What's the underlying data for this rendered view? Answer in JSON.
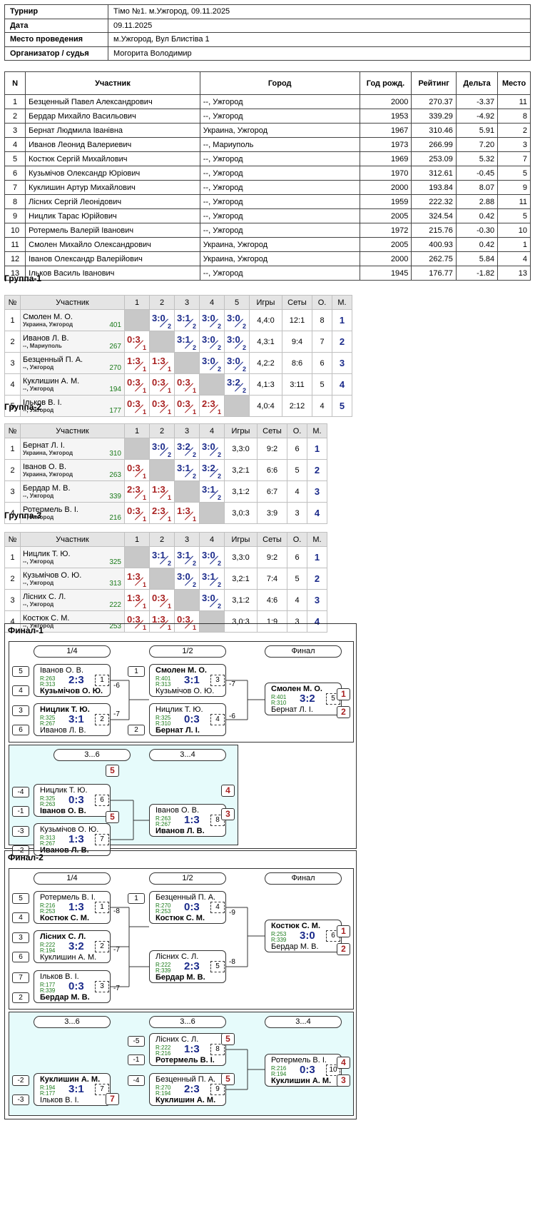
{
  "info": [
    {
      "k": "Турнир",
      "v": "Тімо №1. м.Ужгород, 09.11.2025"
    },
    {
      "k": "Дата",
      "v": "09.11.2025"
    },
    {
      "k": "Место проведения",
      "v": "м.Ужгород, Вул Блистіва 1"
    },
    {
      "k": "Организатор / судья",
      "v": "Могорита Володимир"
    }
  ],
  "main": {
    "headers": [
      "N",
      "Участник",
      "Город",
      "Год рожд.",
      "Рейтинг",
      "Дельта",
      "Место"
    ],
    "rows": [
      [
        "1",
        "Безценный Павел Александрович",
        "--, Ужгород",
        "2000",
        "270.37",
        "-3.37",
        "11"
      ],
      [
        "2",
        "Бердар Михайло Васильович",
        "--, Ужгород",
        "1953",
        "339.29",
        "-4.92",
        "8"
      ],
      [
        "3",
        "Бернат Людмила Іванівна",
        "Украина, Ужгород",
        "1967",
        "310.46",
        "5.91",
        "2"
      ],
      [
        "4",
        "Иванов Леонид Валериевич",
        "--, Мариуполь",
        "1973",
        "266.99",
        "7.20",
        "3"
      ],
      [
        "5",
        "Костюк Сергій Михайлович",
        "--, Ужгород",
        "1969",
        "253.09",
        "5.32",
        "7"
      ],
      [
        "6",
        "Кузьмічов Олександр Юрiович",
        "--, Ужгород",
        "1970",
        "312.61",
        "-0.45",
        "5"
      ],
      [
        "7",
        "Куклишин Артур Михайлович",
        "--, Ужгород",
        "2000",
        "193.84",
        "8.07",
        "9"
      ],
      [
        "8",
        "Лісних Сергій Леонідович",
        "--, Ужгород",
        "1959",
        "222.32",
        "2.88",
        "11"
      ],
      [
        "9",
        "Ницлик Тарас Юрійович",
        "--, Ужгород",
        "2005",
        "324.54",
        "0.42",
        "5"
      ],
      [
        "10",
        "Ротермель Валерій Іванович",
        "--, Ужгород",
        "1972",
        "215.76",
        "-0.30",
        "10"
      ],
      [
        "11",
        "Смолен Михайло Олександрович",
        "Украина, Ужгород",
        "2005",
        "400.93",
        "0.42",
        "1"
      ],
      [
        "12",
        "Іванов Олександр Валерійович",
        "Украина, Ужгород",
        "2000",
        "262.75",
        "5.84",
        "4"
      ],
      [
        "13",
        "Ільков Василь Іванович",
        "--, Ужгород",
        "1945",
        "176.77",
        "-1.82",
        "13"
      ]
    ]
  },
  "groups": [
    {
      "title": "Группа-1",
      "cols": [
        "№",
        "Участник",
        "1",
        "2",
        "3",
        "4",
        "5",
        "Игры",
        "Сеты",
        "О.",
        "М."
      ],
      "players": [
        {
          "n": "1",
          "name": "Смолен М. О.",
          "city": "Украина, Ужгород",
          "rating": "401",
          "scores": [
            "",
            "3:0/2",
            "3:1/2",
            "3:0/2",
            "3:0/2"
          ],
          "games": "4,4:0",
          "sets": "12:1",
          "pts": "8",
          "place": "1"
        },
        {
          "n": "2",
          "name": "Иванов Л. В.",
          "city": "--, Мариуполь",
          "rating": "267",
          "scores": [
            "0:3/1",
            "",
            "3:1/2",
            "3:0/2",
            "3:0/2"
          ],
          "games": "4,3:1",
          "sets": "9:4",
          "pts": "7",
          "place": "2"
        },
        {
          "n": "3",
          "name": "Безценный П. А.",
          "city": "--, Ужгород",
          "rating": "270",
          "scores": [
            "1:3/1",
            "1:3/1",
            "",
            "3:0/2",
            "3:0/2"
          ],
          "games": "4,2:2",
          "sets": "8:6",
          "pts": "6",
          "place": "3"
        },
        {
          "n": "4",
          "name": "Куклишин А. М.",
          "city": "--, Ужгород",
          "rating": "194",
          "scores": [
            "0:3/1",
            "0:3/1",
            "0:3/1",
            "",
            "3:2/2"
          ],
          "games": "4,1:3",
          "sets": "3:11",
          "pts": "5",
          "place": "4"
        },
        {
          "n": "5",
          "name": "Ільков В. І.",
          "city": "--, Ужгород",
          "rating": "177",
          "scores": [
            "0:3/1",
            "0:3/1",
            "0:3/1",
            "2:3/1",
            ""
          ],
          "games": "4,0:4",
          "sets": "2:12",
          "pts": "4",
          "place": "5"
        }
      ]
    },
    {
      "title": "Группа-2",
      "cols": [
        "№",
        "Участник",
        "1",
        "2",
        "3",
        "4",
        "Игры",
        "Сеты",
        "О.",
        "М."
      ],
      "players": [
        {
          "n": "1",
          "name": "Бернат Л. І.",
          "city": "Украина, Ужгород",
          "rating": "310",
          "scores": [
            "",
            "3:0/2",
            "3:2/2",
            "3:0/2"
          ],
          "games": "3,3:0",
          "sets": "9:2",
          "pts": "6",
          "place": "1"
        },
        {
          "n": "2",
          "name": "Іванов О. В.",
          "city": "Украина, Ужгород",
          "rating": "263",
          "scores": [
            "0:3/1",
            "",
            "3:1/2",
            "3:2/2"
          ],
          "games": "3,2:1",
          "sets": "6:6",
          "pts": "5",
          "place": "2"
        },
        {
          "n": "3",
          "name": "Бердар М. В.",
          "city": "--, Ужгород",
          "rating": "339",
          "scores": [
            "2:3/1",
            "1:3/1",
            "",
            "3:1/2"
          ],
          "games": "3,1:2",
          "sets": "6:7",
          "pts": "4",
          "place": "3"
        },
        {
          "n": "4",
          "name": "Ротермель В. І.",
          "city": "--, Ужгород",
          "rating": "216",
          "scores": [
            "0:3/1",
            "2:3/1",
            "1:3/1",
            ""
          ],
          "games": "3,0:3",
          "sets": "3:9",
          "pts": "3",
          "place": "4"
        }
      ]
    },
    {
      "title": "Группа-3",
      "cols": [
        "№",
        "Участник",
        "1",
        "2",
        "3",
        "4",
        "Игры",
        "Сеты",
        "О.",
        "М."
      ],
      "players": [
        {
          "n": "1",
          "name": "Ницлик Т. Ю.",
          "city": "--, Ужгород",
          "rating": "325",
          "scores": [
            "",
            "3:1/2",
            "3:1/2",
            "3:0/2"
          ],
          "games": "3,3:0",
          "sets": "9:2",
          "pts": "6",
          "place": "1"
        },
        {
          "n": "2",
          "name": "Кузьмічов О. Ю.",
          "city": "--, Ужгород",
          "rating": "313",
          "scores": [
            "1:3/1",
            "",
            "3:0/2",
            "3:1/2"
          ],
          "games": "3,2:1",
          "sets": "7:4",
          "pts": "5",
          "place": "2"
        },
        {
          "n": "3",
          "name": "Лісних С. Л.",
          "city": "--, Ужгород",
          "rating": "222",
          "scores": [
            "1:3/1",
            "0:3/1",
            "",
            "3:0/2"
          ],
          "games": "3,1:2",
          "sets": "4:6",
          "pts": "4",
          "place": "3"
        },
        {
          "n": "4",
          "name": "Костюк С. М.",
          "city": "--, Ужгород",
          "rating": "253",
          "scores": [
            "0:3/1",
            "1:3/1",
            "0:3/1",
            ""
          ],
          "games": "3,0:3",
          "sets": "1:9",
          "pts": "3",
          "place": "4"
        }
      ]
    }
  ],
  "finals": [
    {
      "title": "Финал-1",
      "headers": [
        "1/4",
        "1/2",
        "Финал",
        "3...6",
        "3...4"
      ],
      "matches": [
        {
          "p1": "Іванов О. В.",
          "p2": "Кузьмічов О. Ю.",
          "r1": "R:263",
          "r2": "R:313",
          "score": "2:3",
          "num": "1",
          "w": 2
        },
        {
          "p1": "Ницлик Т. Ю.",
          "p2": "Иванов Л. В.",
          "r1": "R:325",
          "r2": "R:267",
          "score": "3:1",
          "num": "2",
          "w": 1
        },
        {
          "p1": "Смолен М. О.",
          "p2": "Кузьмічов О. Ю.",
          "r1": "R:401",
          "r2": "R:313",
          "score": "3:1",
          "num": "3",
          "w": 1
        },
        {
          "p1": "Ницлик Т. Ю.",
          "p2": "Бернат Л. І.",
          "r1": "R:325",
          "r2": "R:310",
          "score": "0:3",
          "num": "4",
          "w": 2
        },
        {
          "p1": "Смолен М. О.",
          "p2": "Бернат Л. І.",
          "r1": "R:401",
          "r2": "R:310",
          "score": "3:2",
          "num": "5",
          "w": 1
        },
        {
          "p1": "Ницлик Т. Ю.",
          "p2": "Іванов О. В.",
          "r1": "R:325",
          "r2": "R:263",
          "score": "0:3",
          "num": "6",
          "w": 2
        },
        {
          "p1": "Кузьмічов О. Ю.",
          "p2": "Иванов Л. В.",
          "r1": "R:313",
          "r2": "R:267",
          "score": "1:3",
          "num": "7",
          "w": 2
        },
        {
          "p1": "Іванов О. В.",
          "p2": "Иванов Л. В.",
          "r1": "R:263",
          "r2": "R:267",
          "score": "1:3",
          "num": "8",
          "w": 2
        }
      ],
      "seeds": [
        "5",
        "4",
        "3",
        "6",
        "1",
        "2",
        "-4",
        "-1",
        "-3",
        "-2"
      ],
      "refs": [
        "-6",
        "-7",
        "-7",
        "-6"
      ],
      "places": [
        "1",
        "2",
        "5",
        "5",
        "4",
        "3"
      ]
    },
    {
      "title": "Финал-2",
      "headers": [
        "1/4",
        "1/2",
        "Финал",
        "3...6",
        "3...6",
        "3...4"
      ],
      "matches": [
        {
          "p1": "Ротермель В. І.",
          "p2": "Костюк С. М.",
          "r1": "R:216",
          "r2": "R:253",
          "score": "1:3",
          "num": "1",
          "w": 2
        },
        {
          "p1": "Лісних С. Л.",
          "p2": "Куклишин А. М.",
          "r1": "R:222",
          "r2": "R:194",
          "score": "3:2",
          "num": "2",
          "w": 1
        },
        {
          "p1": "Ільков В. І.",
          "p2": "Бердар М. В.",
          "r1": "R:177",
          "r2": "R:339",
          "score": "0:3",
          "num": "3",
          "w": 2
        },
        {
          "p1": "Безценный П. А.",
          "p2": "Костюк С. М.",
          "r1": "R:270",
          "r2": "R:253",
          "score": "0:3",
          "num": "4",
          "w": 2
        },
        {
          "p1": "Лісних С. Л.",
          "p2": "Бердар М. В.",
          "r1": "R:222",
          "r2": "R:339",
          "score": "2:3",
          "num": "5",
          "w": 2
        },
        {
          "p1": "Костюк С. М.",
          "p2": "Бердар М. В.",
          "r1": "R:253",
          "r2": "R:339",
          "score": "3:0",
          "num": "6",
          "w": 1
        },
        {
          "p1": "Куклишин А. М.",
          "p2": "Ільков В. І.",
          "r1": "R:194",
          "r2": "R:177",
          "score": "3:1",
          "num": "7",
          "w": 1
        },
        {
          "p1": "Лісних С. Л.",
          "p2": "Ротермель В. І.",
          "r1": "R:222",
          "r2": "R:216",
          "score": "1:3",
          "num": "8",
          "w": 2
        },
        {
          "p1": "Безценный П. А.",
          "p2": "Куклишин А. М.",
          "r1": "R:270",
          "r2": "R:194",
          "score": "2:3",
          "num": "9",
          "w": 2
        },
        {
          "p1": "Ротермель В. І.",
          "p2": "Куклишин А. М.",
          "r1": "R:216",
          "r2": "R:194",
          "score": "0:3",
          "num": "10",
          "w": 2
        }
      ],
      "seeds": [
        "5",
        "4",
        "3",
        "6",
        "7",
        "2",
        "1",
        "-5",
        "-1",
        "-4",
        "-2",
        "-3"
      ],
      "refs": [
        "-8",
        "-7",
        "-7",
        "-9",
        "-8"
      ],
      "places": [
        "1",
        "2",
        "5",
        "5",
        "7",
        "4",
        "3"
      ]
    }
  ],
  "colors": {
    "win": "#1a2a8a",
    "loss": "#a82020",
    "rating": "#1a7a1a",
    "panel_cyan": "#e6fbfb"
  }
}
